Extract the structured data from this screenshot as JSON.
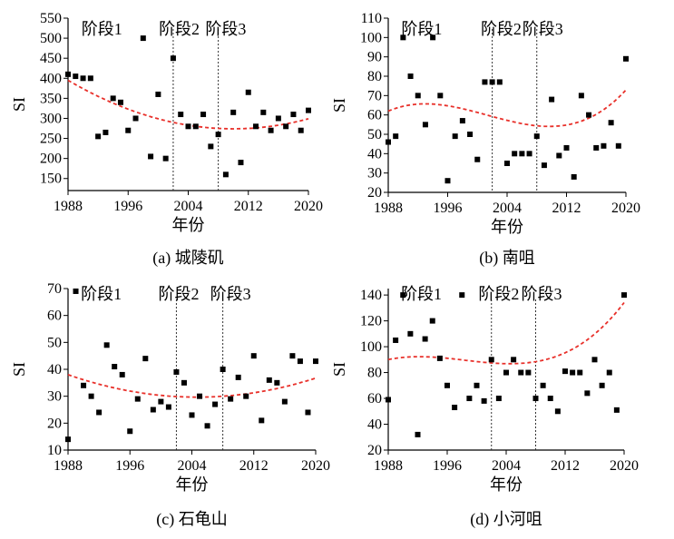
{
  "chart_data": [
    {
      "type": "scatter",
      "caption": "(a) 城陵矶",
      "xlabel": "年份",
      "ylabel": "SI",
      "xlim": [
        1988,
        2020
      ],
      "ylim": [
        120,
        550
      ],
      "xticks": [
        1988,
        1996,
        2004,
        2012,
        2020
      ],
      "yticks": [
        150,
        200,
        250,
        300,
        350,
        400,
        450,
        500,
        550
      ],
      "phase_boundaries": [
        2002,
        2008
      ],
      "phase_labels": [
        "阶段1",
        "阶段2",
        "阶段3"
      ],
      "points": {
        "x": [
          1988,
          1989,
          1990,
          1991,
          1992,
          1993,
          1994,
          1995,
          1996,
          1997,
          1998,
          1999,
          2000,
          2001,
          2002,
          2003,
          2004,
          2005,
          2006,
          2007,
          2008,
          2009,
          2010,
          2011,
          2012,
          2013,
          2014,
          2015,
          2016,
          2017,
          2018,
          2019,
          2020
        ],
        "y": [
          410,
          405,
          400,
          400,
          255,
          265,
          350,
          340,
          270,
          300,
          500,
          205,
          360,
          200,
          450,
          310,
          280,
          280,
          310,
          230,
          260,
          160,
          315,
          190,
          365,
          280,
          315,
          270,
          300,
          280,
          310,
          270,
          320
        ]
      },
      "trend": {
        "style": "red dashed",
        "coefficients": [
          395,
          -11.0,
          0.25
        ]
      }
    },
    {
      "type": "scatter",
      "caption": "(b) 南咀",
      "xlabel": "年份",
      "ylabel": "SI",
      "xlim": [
        1988,
        2020
      ],
      "ylim": [
        20,
        110
      ],
      "xticks": [
        1988,
        1996,
        2004,
        2012,
        2020
      ],
      "yticks": [
        20,
        30,
        40,
        50,
        60,
        70,
        80,
        90,
        100,
        110
      ],
      "phase_boundaries": [
        2002,
        2008
      ],
      "phase_labels": [
        "阶段1",
        "阶段2",
        "阶段3"
      ],
      "points": {
        "x": [
          1988,
          1989,
          1990,
          1991,
          1992,
          1993,
          1994,
          1995,
          1996,
          1997,
          1998,
          1999,
          2000,
          2001,
          2002,
          2003,
          2004,
          2005,
          2006,
          2007,
          2008,
          2009,
          2010,
          2011,
          2012,
          2013,
          2014,
          2015,
          2016,
          2017,
          2018,
          2019,
          2020
        ],
        "y": [
          46,
          49,
          100,
          80,
          70,
          55,
          100,
          70,
          26,
          49,
          57,
          50,
          37,
          77,
          77,
          77,
          35,
          40,
          40,
          40,
          49,
          34,
          68,
          39,
          43,
          28,
          70,
          60,
          43,
          44,
          56,
          44,
          89
        ]
      },
      "trend": {
        "style": "red dashed",
        "coefficients": [
          62,
          1.62,
          -0.2,
          0.005
        ]
      }
    },
    {
      "type": "scatter",
      "caption": "(c) 石龟山",
      "xlabel": "年份",
      "ylabel": "SI",
      "xlim": [
        1988,
        2020
      ],
      "ylim": [
        10,
        70
      ],
      "xticks": [
        1988,
        1996,
        2004,
        2012,
        2020
      ],
      "yticks": [
        10,
        20,
        30,
        40,
        50,
        60,
        70
      ],
      "phase_boundaries": [
        2002,
        2008
      ],
      "phase_labels": [
        "阶段1",
        "阶段2",
        "阶段3"
      ],
      "points": {
        "x": [
          1988,
          1989,
          1990,
          1991,
          1992,
          1993,
          1994,
          1995,
          1996,
          1997,
          1998,
          1999,
          2000,
          2001,
          2002,
          2003,
          2004,
          2005,
          2006,
          2007,
          2008,
          2009,
          2010,
          2011,
          2012,
          2013,
          2014,
          2015,
          2016,
          2017,
          2018,
          2019,
          2020
        ],
        "y": [
          14,
          69,
          34,
          30,
          24,
          49,
          41,
          38,
          17,
          29,
          44,
          25,
          28,
          26,
          39,
          35,
          23,
          30,
          19,
          27,
          40,
          29,
          37,
          30,
          45,
          21,
          36,
          35,
          28,
          45,
          43,
          24,
          43
        ]
      },
      "trend": {
        "style": "red dashed",
        "coefficients": [
          38,
          -1.0,
          0.03
        ]
      }
    },
    {
      "type": "scatter",
      "caption": "(d) 小河咀",
      "xlabel": "年份",
      "ylabel": "SI",
      "xlim": [
        1988,
        2020
      ],
      "ylim": [
        20,
        145
      ],
      "xticks": [
        1988,
        1996,
        2004,
        2012,
        2020
      ],
      "yticks": [
        20,
        40,
        60,
        80,
        100,
        120,
        140
      ],
      "phase_boundaries": [
        2002,
        2008
      ],
      "phase_labels": [
        "阶段1",
        "阶段2",
        "阶段3"
      ],
      "points": {
        "x": [
          1988,
          1989,
          1990,
          1991,
          1992,
          1993,
          1994,
          1995,
          1996,
          1997,
          1998,
          1999,
          2000,
          2001,
          2002,
          2003,
          2004,
          2005,
          2006,
          2007,
          2008,
          2009,
          2010,
          2011,
          2012,
          2013,
          2014,
          2015,
          2016,
          2017,
          2018,
          2019,
          2020
        ],
        "y": [
          59,
          105,
          140,
          110,
          32,
          106,
          120,
          91,
          70,
          53,
          140,
          60,
          70,
          58,
          90,
          60,
          80,
          90,
          80,
          80,
          60,
          70,
          60,
          50,
          81,
          80,
          80,
          64,
          90,
          70,
          80,
          51,
          140
        ]
      },
      "trend": {
        "style": "red dashed",
        "coefficients": [
          90,
          1.2,
          -0.18,
          0.0058
        ]
      }
    }
  ]
}
